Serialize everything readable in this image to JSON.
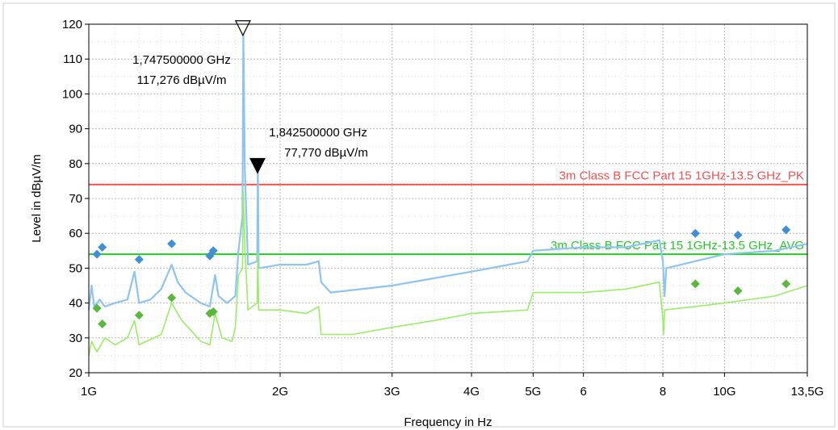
{
  "chart_data": {
    "type": "line",
    "xlabel": "Frequency in Hz",
    "ylabel": "Level in dBµV/m",
    "x_scale": "log",
    "xlim": [
      1,
      13.5
    ],
    "ylim": [
      20,
      120
    ],
    "grid": true,
    "x_ticks": [
      {
        "value": 1,
        "label": "1G"
      },
      {
        "value": 2,
        "label": "2G"
      },
      {
        "value": 3,
        "label": "3G"
      },
      {
        "value": 4,
        "label": "4G"
      },
      {
        "value": 5,
        "label": "5G"
      },
      {
        "value": 6,
        "label": "6"
      },
      {
        "value": 8,
        "label": "8"
      },
      {
        "value": 10,
        "label": "10G"
      },
      {
        "value": 13.5,
        "label": "13,5G"
      }
    ],
    "y_ticks": [
      20,
      30,
      40,
      50,
      60,
      70,
      80,
      90,
      100,
      110,
      120
    ],
    "limit_lines": [
      {
        "label": "3m Class B FCC Part 15 1GHz-13.5 GHz_PK",
        "value": 74,
        "color": "#f05050"
      },
      {
        "label": "3m Class B FCC Part 15 1GHz-13.5 GHz_AVG",
        "value": 54,
        "color": "#22cc22"
      }
    ],
    "markers": [
      {
        "freq_label": "1,747500000 GHz",
        "level_label": "117,276 dBµV/m",
        "x": 1.7475,
        "y": 117.276,
        "style": "hollow"
      },
      {
        "freq_label": "1,842500000 GHz",
        "level_label": "77,770 dBµV/m",
        "x": 1.8425,
        "y": 77.77,
        "style": "filled"
      }
    ],
    "series": [
      {
        "color": "#8ec4f0",
        "points": [
          [
            1.0,
            38
          ],
          [
            1.01,
            45
          ],
          [
            1.02,
            39
          ],
          [
            1.04,
            41
          ],
          [
            1.06,
            39
          ],
          [
            1.1,
            40
          ],
          [
            1.15,
            41
          ],
          [
            1.18,
            49
          ],
          [
            1.2,
            40
          ],
          [
            1.25,
            41
          ],
          [
            1.3,
            44
          ],
          [
            1.35,
            51
          ],
          [
            1.38,
            46
          ],
          [
            1.42,
            43
          ],
          [
            1.5,
            40
          ],
          [
            1.55,
            39
          ],
          [
            1.58,
            48
          ],
          [
            1.6,
            42
          ],
          [
            1.65,
            40
          ],
          [
            1.7,
            42
          ],
          [
            1.72,
            55
          ],
          [
            1.745,
            65
          ],
          [
            1.75,
            118
          ],
          [
            1.76,
            78
          ],
          [
            1.78,
            51
          ],
          [
            1.84,
            52
          ],
          [
            1.845,
            79
          ],
          [
            1.85,
            50
          ],
          [
            2.0,
            51
          ],
          [
            2.2,
            51
          ],
          [
            2.3,
            52
          ],
          [
            2.32,
            46
          ],
          [
            2.4,
            43
          ],
          [
            3.0,
            45
          ],
          [
            4.0,
            49
          ],
          [
            4.9,
            52
          ],
          [
            5.0,
            55
          ],
          [
            6.0,
            56
          ],
          [
            7.0,
            56
          ],
          [
            7.9,
            58
          ],
          [
            8.0,
            52
          ],
          [
            8.05,
            42
          ],
          [
            8.1,
            50
          ],
          [
            10.0,
            54
          ],
          [
            12.0,
            55
          ],
          [
            13.5,
            57
          ]
        ]
      },
      {
        "color": "#99ee66",
        "points": [
          [
            1.0,
            25
          ],
          [
            1.01,
            29
          ],
          [
            1.03,
            26
          ],
          [
            1.06,
            30
          ],
          [
            1.1,
            28
          ],
          [
            1.15,
            30
          ],
          [
            1.18,
            35
          ],
          [
            1.2,
            28
          ],
          [
            1.3,
            31
          ],
          [
            1.35,
            40
          ],
          [
            1.4,
            35
          ],
          [
            1.45,
            32
          ],
          [
            1.5,
            29
          ],
          [
            1.55,
            28
          ],
          [
            1.58,
            37
          ],
          [
            1.62,
            30
          ],
          [
            1.68,
            29
          ],
          [
            1.7,
            33
          ],
          [
            1.72,
            48
          ],
          [
            1.745,
            50
          ],
          [
            1.75,
            72
          ],
          [
            1.76,
            56
          ],
          [
            1.78,
            38
          ],
          [
            1.84,
            40
          ],
          [
            1.845,
            54
          ],
          [
            1.85,
            38
          ],
          [
            2.0,
            38
          ],
          [
            2.2,
            37
          ],
          [
            2.3,
            39
          ],
          [
            2.32,
            31
          ],
          [
            2.6,
            31
          ],
          [
            3.0,
            33
          ],
          [
            3.5,
            35
          ],
          [
            4.0,
            37
          ],
          [
            4.9,
            38
          ],
          [
            5.0,
            43
          ],
          [
            6.0,
            43
          ],
          [
            7.0,
            44
          ],
          [
            7.9,
            46
          ],
          [
            8.0,
            35
          ],
          [
            8.02,
            31
          ],
          [
            8.05,
            38
          ],
          [
            9.0,
            39
          ],
          [
            10.0,
            40
          ],
          [
            12.0,
            42
          ],
          [
            13.5,
            45
          ]
        ]
      }
    ],
    "peak_points": [
      {
        "x": 1.03,
        "y": 54
      },
      {
        "x": 1.05,
        "y": 56
      },
      {
        "x": 1.2,
        "y": 52.5
      },
      {
        "x": 1.35,
        "y": 57
      },
      {
        "x": 1.55,
        "y": 53.5
      },
      {
        "x": 1.57,
        "y": 55
      },
      {
        "x": 9.0,
        "y": 60
      },
      {
        "x": 10.5,
        "y": 59.5
      },
      {
        "x": 12.5,
        "y": 61
      }
    ],
    "avg_points": [
      {
        "x": 1.03,
        "y": 38.5
      },
      {
        "x": 1.05,
        "y": 34
      },
      {
        "x": 1.2,
        "y": 36.5
      },
      {
        "x": 1.35,
        "y": 41.5
      },
      {
        "x": 1.55,
        "y": 37
      },
      {
        "x": 1.57,
        "y": 37.5
      },
      {
        "x": 9.0,
        "y": 45.5
      },
      {
        "x": 10.5,
        "y": 43.5
      },
      {
        "x": 12.5,
        "y": 45.5
      }
    ],
    "peak_color": "#3f8fd6",
    "avg_color": "#5cb83c"
  }
}
